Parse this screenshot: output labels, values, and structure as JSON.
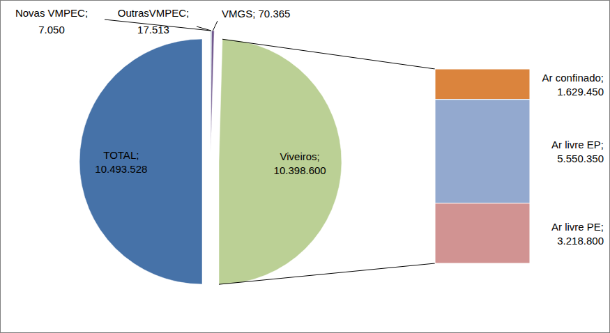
{
  "chart_data": [
    {
      "type": "pie",
      "categories": [
        "TOTAL",
        "Novas VMPEC",
        "OutrasVMPEC",
        "VMGS",
        "Viveiros"
      ],
      "values": [
        10493528,
        7050,
        17513,
        70365,
        10398600
      ],
      "value_labels": [
        "10.493.528",
        "7.050",
        "17.513",
        "70.365",
        "10.398.600"
      ],
      "colors": [
        "#4672a8",
        "#aa4643",
        "#4198af",
        "#71588f",
        "#bbd095"
      ],
      "data_labels": true,
      "label_separator": ";"
    },
    {
      "type": "bar",
      "stacked": true,
      "data_labels": true,
      "tick_labels": false,
      "label_separator": ";",
      "series": [
        {
          "name": "Ar confinado",
          "color": "#db843d",
          "values": [
            1629450
          ],
          "value_labels": [
            "1.629.450"
          ]
        },
        {
          "name": "Ar livre EP",
          "color": "#93a9cf",
          "values": [
            5550350
          ],
          "value_labels": [
            "5.550.350"
          ]
        },
        {
          "name": "Ar livre PE",
          "color": "#d19392",
          "values": [
            3218800
          ],
          "value_labels": [
            "3.218.800"
          ]
        }
      ]
    }
  ]
}
